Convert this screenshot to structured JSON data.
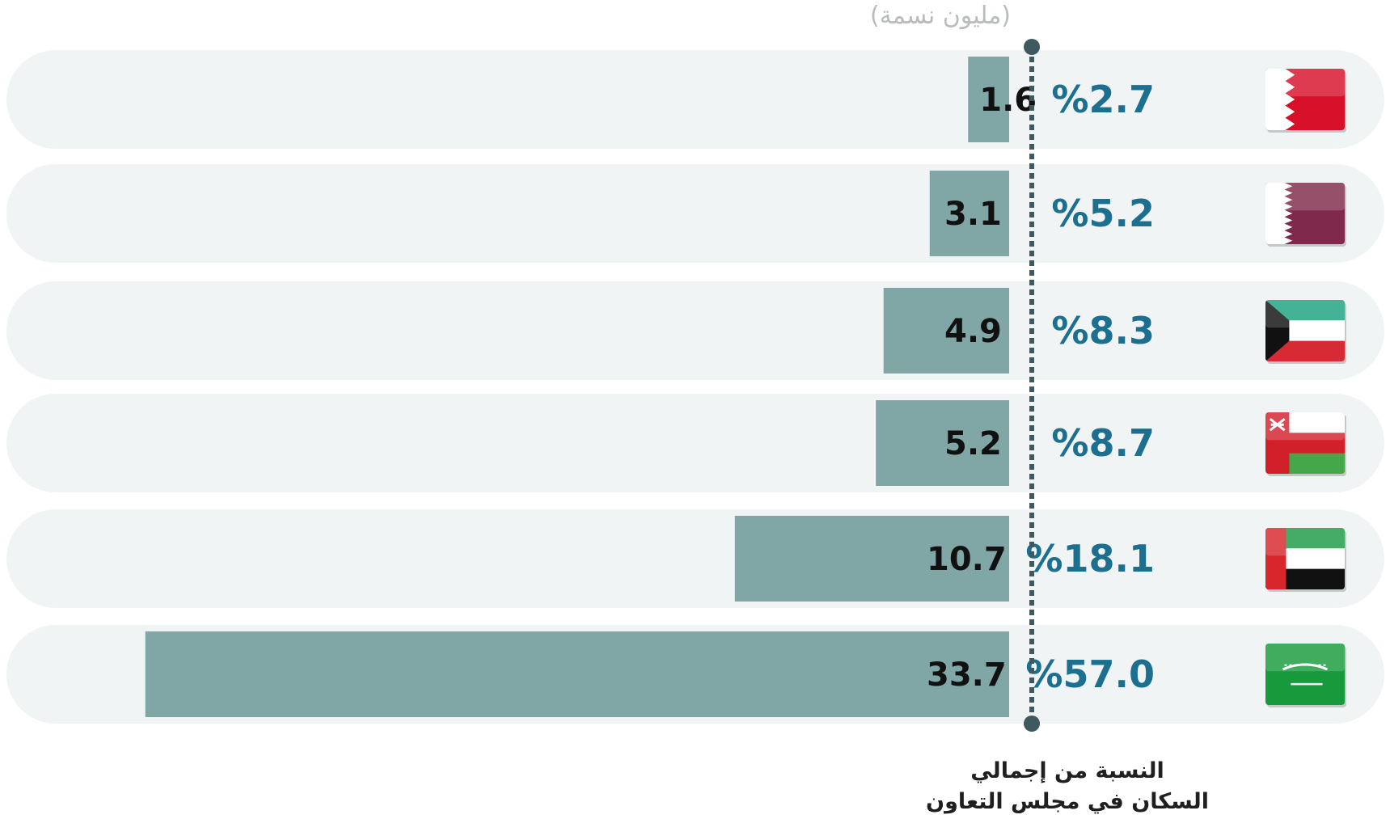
{
  "chart_data": {
    "type": "bar",
    "orientation": "horizontal",
    "direction": "rtl",
    "unit_label": "(مليون نسمة)",
    "share_title_lines": [
      "النسبة من إجمالي",
      "السكان في مجلس التعاون"
    ],
    "rows": [
      {
        "flag": "bahrain-flag",
        "value": 1.6,
        "value_label": "1.6",
        "share_label": "%2.7"
      },
      {
        "flag": "qatar-flag",
        "value": 3.1,
        "value_label": "3.1",
        "share_label": "%5.2"
      },
      {
        "flag": "kuwait-flag",
        "value": 4.9,
        "value_label": "4.9",
        "share_label": "%8.3"
      },
      {
        "flag": "oman-flag",
        "value": 5.2,
        "value_label": "5.2",
        "share_label": "%8.7"
      },
      {
        "flag": "uae-flag",
        "value": 10.7,
        "value_label": "10.7",
        "share_label": "%18.1"
      },
      {
        "flag": "saudi-flag",
        "value": 33.7,
        "value_label": "33.7",
        "share_label": "%57.0"
      }
    ],
    "colors": {
      "bar": "#80a6a6",
      "row_background": "#f0f4f4",
      "share_text": "#1d6f8f",
      "value_text": "#111111",
      "axis_line": "#3f5a5e"
    },
    "grid": false,
    "legend": "none"
  }
}
